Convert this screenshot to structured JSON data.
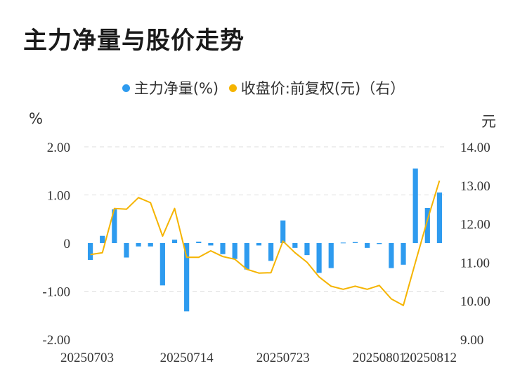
{
  "title": "主力净量与股价走势",
  "legend": [
    {
      "label": "主力净量(%)",
      "color": "#2e9bef"
    },
    {
      "label": "收盘价:前复权(元)（右）",
      "color": "#f5b400"
    }
  ],
  "units": {
    "left": "%",
    "right": "元"
  },
  "chart_data": {
    "type": "bar+line",
    "x_tick_labels": [
      "20250703",
      "20250714",
      "20250723",
      "20250801",
      "20250812"
    ],
    "y_left": {
      "ticks": [
        "2.00",
        "1.00",
        "0",
        "-1.00",
        "-2.00"
      ],
      "range": [
        -2,
        2
      ]
    },
    "y_right": {
      "ticks": [
        "14.00",
        "13.00",
        "12.00",
        "11.00",
        "10.00",
        "9.00"
      ],
      "range": [
        9,
        14
      ]
    },
    "grid": true,
    "series": [
      {
        "name": "主力净量(%)",
        "type": "bar",
        "axis": "left",
        "color": "#2e9bef",
        "values": [
          -0.35,
          0.15,
          0.7,
          -0.3,
          -0.07,
          -0.07,
          -0.88,
          0.07,
          -1.42,
          0.03,
          -0.05,
          -0.23,
          -0.33,
          -0.55,
          -0.05,
          -0.37,
          0.47,
          -0.1,
          -0.25,
          -0.62,
          -0.52,
          0.01,
          0.02,
          -0.1,
          -0.02,
          -0.52,
          -0.45,
          1.55,
          0.73,
          1.05
        ]
      },
      {
        "name": "收盘价:前复权(元)（右）",
        "type": "line",
        "axis": "right",
        "color": "#f5b400",
        "values": [
          11.2,
          11.25,
          12.4,
          12.38,
          12.68,
          12.55,
          11.68,
          12.4,
          11.13,
          11.13,
          11.3,
          11.15,
          11.08,
          10.82,
          10.72,
          10.73,
          11.55,
          11.25,
          11.0,
          10.62,
          10.38,
          10.3,
          10.38,
          10.3,
          10.4,
          10.05,
          9.88,
          11.0,
          12.1,
          13.12
        ]
      }
    ]
  }
}
